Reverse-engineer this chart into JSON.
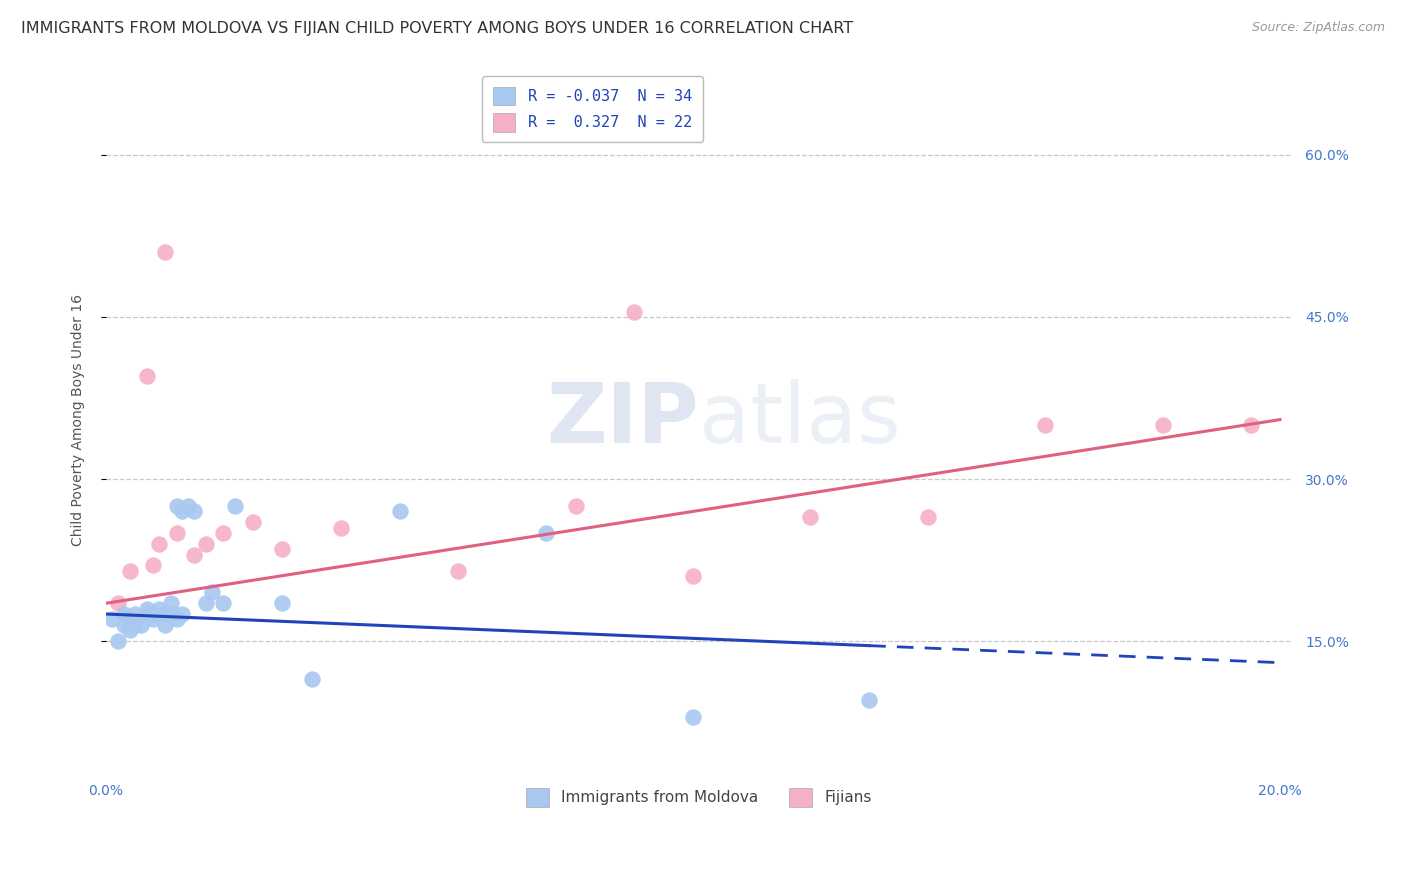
{
  "title": "IMMIGRANTS FROM MOLDOVA VS FIJIAN CHILD POVERTY AMONG BOYS UNDER 16 CORRELATION CHART",
  "source": "Source: ZipAtlas.com",
  "ylabel": "Child Poverty Among Boys Under 16",
  "ytick_values": [
    0.15,
    0.3,
    0.45,
    0.6
  ],
  "ytick_labels": [
    "15.0%",
    "30.0%",
    "45.0%",
    "60.0%"
  ],
  "xlim": [
    0.0,
    0.202
  ],
  "ylim": [
    0.03,
    0.68
  ],
  "legend_line1": "R = -0.037  N = 34",
  "legend_line2": "R =  0.327  N = 22",
  "moldova_color": "#a8c8f0",
  "fijian_color": "#f5b0c5",
  "moldova_line_color": "#2244bb",
  "fijian_line_color": "#e06080",
  "moldova_x": [
    0.001,
    0.002,
    0.003,
    0.003,
    0.004,
    0.004,
    0.005,
    0.005,
    0.006,
    0.007,
    0.007,
    0.008,
    0.008,
    0.009,
    0.01,
    0.01,
    0.011,
    0.011,
    0.012,
    0.012,
    0.013,
    0.013,
    0.014,
    0.015,
    0.017,
    0.018,
    0.02,
    0.022,
    0.03,
    0.035,
    0.05,
    0.075,
    0.1,
    0.13
  ],
  "moldova_y": [
    0.17,
    0.15,
    0.165,
    0.175,
    0.16,
    0.17,
    0.165,
    0.175,
    0.165,
    0.175,
    0.18,
    0.17,
    0.175,
    0.18,
    0.165,
    0.175,
    0.175,
    0.185,
    0.17,
    0.275,
    0.27,
    0.175,
    0.275,
    0.27,
    0.185,
    0.195,
    0.185,
    0.275,
    0.185,
    0.115,
    0.27,
    0.25,
    0.08,
    0.095
  ],
  "fijian_x": [
    0.002,
    0.004,
    0.007,
    0.008,
    0.009,
    0.01,
    0.012,
    0.015,
    0.017,
    0.02,
    0.025,
    0.03,
    0.04,
    0.06,
    0.08,
    0.09,
    0.1,
    0.12,
    0.14,
    0.16,
    0.18,
    0.195
  ],
  "fijian_y": [
    0.185,
    0.215,
    0.395,
    0.22,
    0.24,
    0.51,
    0.25,
    0.23,
    0.24,
    0.25,
    0.26,
    0.235,
    0.255,
    0.215,
    0.275,
    0.455,
    0.21,
    0.265,
    0.265,
    0.35,
    0.35,
    0.35
  ],
  "background_color": "#ffffff",
  "grid_color": "#c8c8c8",
  "title_fontsize": 11.5,
  "source_fontsize": 9,
  "axis_label_fontsize": 10,
  "tick_fontsize": 10,
  "watermark_color": "#cdd8ee"
}
